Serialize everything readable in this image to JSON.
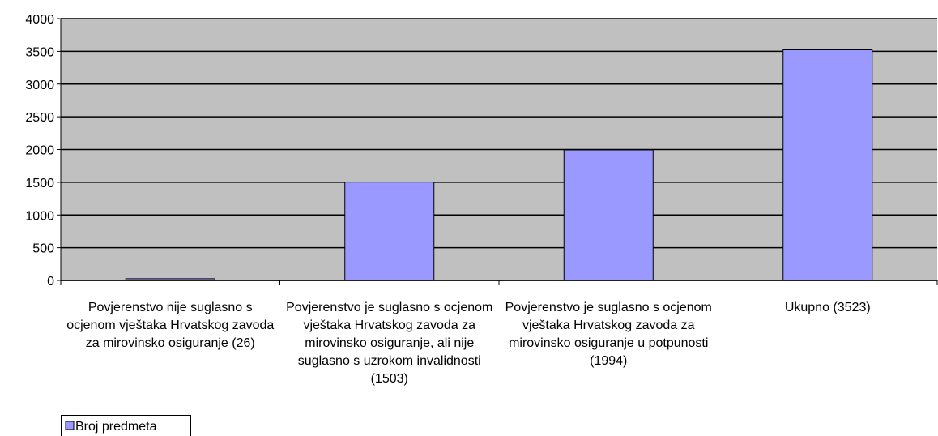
{
  "chart_data": {
    "type": "bar",
    "categories": [
      "Povjerenstvo nije suglasno s ocjenom vještaka Hrvatskog zavoda za mirovinsko osiguranje (26)",
      "Povjerenstvo je suglasno s ocjenom vještaka Hrvatskog zavoda za mirovinsko osiguranje, ali nije suglasno s uzrokom invalidnosti (1503)",
      "Povjerenstvo je suglasno s ocjenom vještaka Hrvatskog zavoda za mirovinsko osiguranje u potpunosti (1994)",
      "Ukupno (3523)"
    ],
    "series": [
      {
        "name": "Broj predmeta",
        "color": "#9999ff",
        "values": [
          26,
          1503,
          1994,
          3523
        ]
      }
    ],
    "ylim": [
      0,
      4000
    ],
    "yticks": [
      0,
      500,
      1000,
      1500,
      2000,
      2500,
      3000,
      3500,
      4000
    ],
    "grid": true,
    "legend": "bottom-left"
  }
}
